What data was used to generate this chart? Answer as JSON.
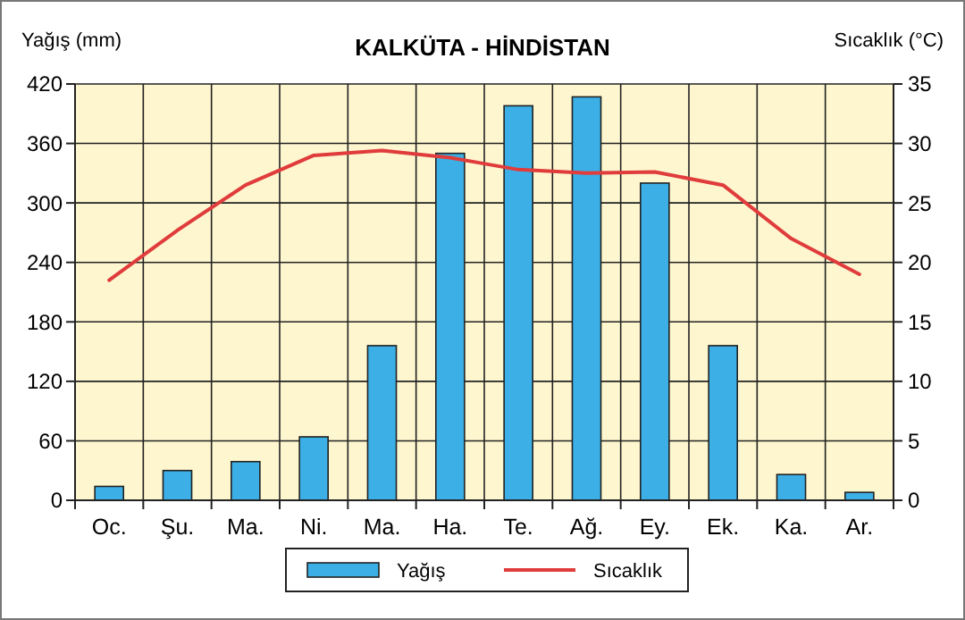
{
  "chart_data": {
    "type": "bar",
    "title": "KALKÜTA - HİNDİSTAN",
    "ylabel": "Yağış (mm)",
    "y2label": "Sıcaklık (°C)",
    "categories": [
      "Oc.",
      "Şu.",
      "Ma.",
      "Ni.",
      "Ma.",
      "Ha.",
      "Te.",
      "Ağ.",
      "Ey.",
      "Ek.",
      "Ka.",
      "Ar."
    ],
    "series": [
      {
        "name": "Yağış",
        "color": "#3cb0e6",
        "values": [
          14,
          30,
          39,
          64,
          156,
          350,
          398,
          407,
          320,
          156,
          26,
          8
        ]
      },
      {
        "name": "Sıcaklık",
        "type": "line",
        "axis": "y2",
        "color": "#e03c3c",
        "values": [
          18.5,
          22.7,
          26.5,
          29,
          29.4,
          28.8,
          27.8,
          27.5,
          27.6,
          26.5,
          22,
          19
        ]
      }
    ],
    "ylim": [
      0,
      420
    ],
    "yticks": [
      0,
      60,
      120,
      180,
      240,
      300,
      360,
      420
    ],
    "y2lim": [
      0,
      35
    ],
    "y2ticks": [
      0,
      5,
      10,
      15,
      20,
      25,
      30,
      35
    ],
    "grid": true,
    "legend": "bottom"
  }
}
